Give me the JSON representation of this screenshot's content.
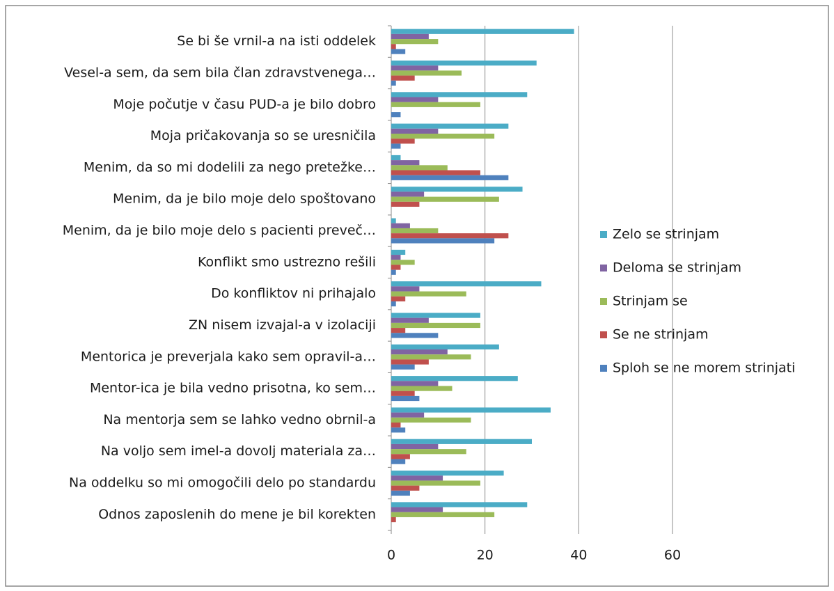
{
  "chart_data": {
    "type": "bar",
    "orientation": "horizontal",
    "categories": [
      "Se bi še vrnil-a na isti oddelek",
      "Vesel-a sem, da sem bila član zdravstvenega…",
      "Moje počutje v času PUD-a je bilo dobro",
      "Moja pričakovanja so se uresničila",
      "Menim, da so mi dodelili za nego pretežke…",
      "Menim, da je bilo moje delo spoštovano",
      "Menim, da je bilo moje delo s pacienti preveč…",
      "Konflikt smo ustrezno rešili",
      "Do konfliktov ni prihajalo",
      "ZN nisem izvajal-a v izolaciji",
      "Mentorica je preverjala kako sem opravil-a…",
      "Mentor-ica je bila vedno prisotna, ko sem…",
      "Na mentorja sem se lahko vedno obrnil-a",
      "Na voljo sem imel-a dovolj materiala za…",
      "Na oddelku so mi omogočili delo po standardu",
      "Odnos zaposlenih do mene je bil korekten"
    ],
    "series": [
      {
        "name": "Zelo se strinjam",
        "color": "#4bacc6",
        "values": [
          39,
          31,
          29,
          25,
          2,
          28,
          1,
          3,
          32,
          19,
          23,
          27,
          34,
          30,
          24,
          29
        ]
      },
      {
        "name": "Deloma se strinjam",
        "color": "#8064a2",
        "values": [
          8,
          10,
          10,
          10,
          6,
          7,
          4,
          2,
          6,
          8,
          12,
          10,
          7,
          10,
          11,
          11
        ]
      },
      {
        "name": "Strinjam se",
        "color": "#9bbb59",
        "values": [
          10,
          15,
          19,
          22,
          12,
          23,
          10,
          5,
          16,
          19,
          17,
          13,
          17,
          16,
          19,
          22
        ]
      },
      {
        "name": "Se ne strinjam",
        "color": "#c0504d",
        "values": [
          1,
          5,
          0,
          5,
          19,
          6,
          25,
          2,
          3,
          3,
          8,
          5,
          2,
          4,
          6,
          1
        ]
      },
      {
        "name": "Sploh se ne morem strinjati",
        "color": "#4f81bd",
        "values": [
          3,
          1,
          2,
          2,
          25,
          0,
          22,
          1,
          1,
          10,
          5,
          6,
          3,
          3,
          4,
          0
        ]
      }
    ],
    "xlim": [
      0,
      60
    ],
    "xticks": [
      0,
      20,
      40,
      60
    ],
    "grid": true,
    "legend": "right"
  }
}
